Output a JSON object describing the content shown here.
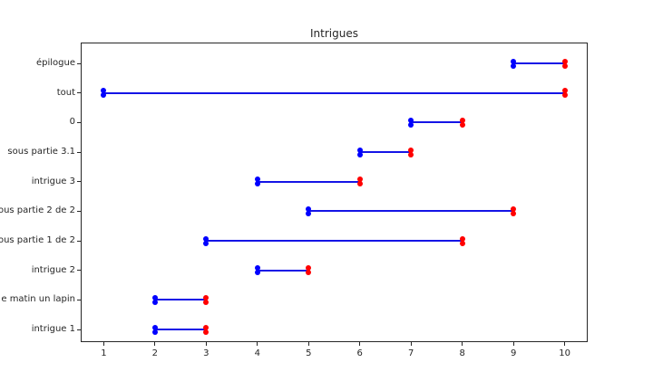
{
  "chart_data": {
    "type": "line",
    "subtype": "horizontal-segments-gantt",
    "title": "Intrigues",
    "xlabel": "",
    "ylabel": "",
    "grid": false,
    "legend": "none",
    "xlim": [
      0.55,
      10.45
    ],
    "x_ticks": [
      "1",
      "2",
      "3",
      "4",
      "5",
      "6",
      "7",
      "8",
      "9",
      "10"
    ],
    "start_color": "#0000ff",
    "end_color": "#ff0000",
    "line_color": "#1414e6",
    "axis_color": "#262626",
    "background_color": "#ffffff",
    "rows": [
      {
        "label": "épilogue",
        "start": 9,
        "end": 10
      },
      {
        "label": "tout",
        "start": 1,
        "end": 10
      },
      {
        "label": "0",
        "start": 7,
        "end": 8
      },
      {
        "label": "sous partie 3.1",
        "start": 6,
        "end": 7
      },
      {
        "label": "intrigue 3",
        "start": 4,
        "end": 6
      },
      {
        "label": "ous partie 2 de 2",
        "start": 5,
        "end": 9
      },
      {
        "label": "ous partie 1 de 2",
        "start": 3,
        "end": 8
      },
      {
        "label": "intrigue 2",
        "start": 4,
        "end": 5
      },
      {
        "label": "e matin un lapin",
        "start": 2,
        "end": 3
      },
      {
        "label": "intrigue 1",
        "start": 2,
        "end": 3
      }
    ]
  }
}
